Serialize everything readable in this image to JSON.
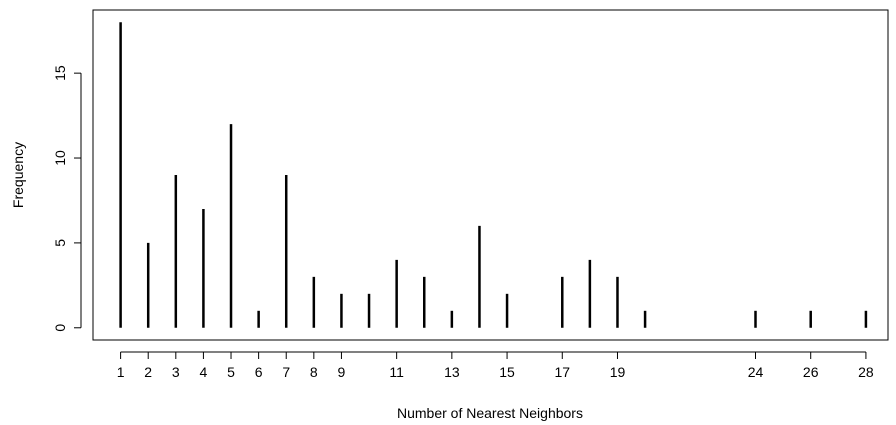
{
  "chart_data": {
    "type": "bar",
    "style": "histogram-needle",
    "xlabel": "Number of Nearest Neighbors",
    "ylabel": "Frequency",
    "x": [
      1,
      2,
      3,
      4,
      5,
      6,
      7,
      8,
      9,
      10,
      11,
      12,
      13,
      14,
      15,
      17,
      18,
      19,
      20,
      24,
      26,
      28
    ],
    "values": [
      18,
      5,
      9,
      7,
      12,
      1,
      9,
      3,
      2,
      2,
      4,
      3,
      1,
      6,
      2,
      3,
      4,
      3,
      1,
      1,
      1,
      1
    ],
    "xlim": [
      0,
      28.8
    ],
    "ylim": [
      -0.72,
      18.72
    ],
    "xticks": [
      1,
      2,
      3,
      4,
      5,
      6,
      7,
      8,
      9,
      11,
      13,
      15,
      17,
      19,
      24,
      26,
      28
    ],
    "yticks": [
      0,
      5,
      10,
      15
    ],
    "grid": false,
    "legend": "none",
    "color": "#000000"
  }
}
